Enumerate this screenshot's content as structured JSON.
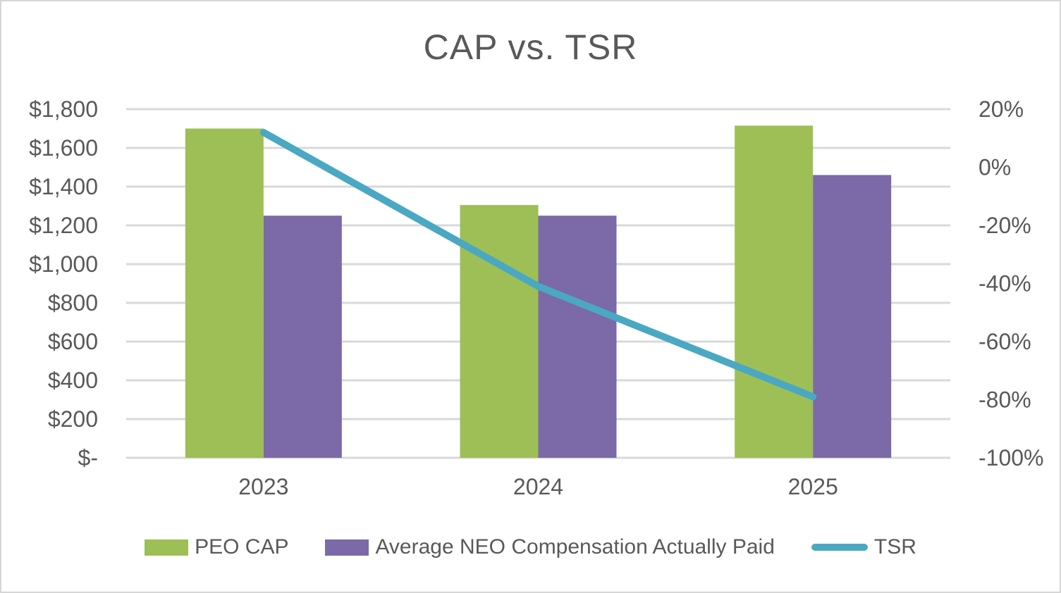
{
  "title": "CAP vs. TSR",
  "colors": {
    "peo_cap_green": "#9dbf55",
    "neo_cap_purple": "#7c69a7",
    "tsr_teal": "#4aa8c2",
    "gridline": "#d9d9d9",
    "axis_text": "#595959",
    "frame_border": "#d6d6d6",
    "background": "#ffffff"
  },
  "chart_data": {
    "type": "bar",
    "subtype": "combo-bar-line-dual-axis",
    "title": "CAP vs. TSR",
    "categories": [
      "2023",
      "2024",
      "2025"
    ],
    "series": [
      {
        "name": "PEO CAP",
        "type": "bar",
        "axis": "left",
        "color": "#9dbf55",
        "values": [
          1700,
          1305,
          1715
        ]
      },
      {
        "name": "Average NEO Compensation Actually Paid",
        "type": "bar",
        "axis": "left",
        "color": "#7c69a7",
        "values": [
          1250,
          1250,
          1460
        ]
      },
      {
        "name": "TSR",
        "type": "line",
        "axis": "right",
        "color": "#4aa8c2",
        "values": [
          12,
          -41,
          -79
        ]
      }
    ],
    "left_axis": {
      "min": 0,
      "max": 1800,
      "step": 200,
      "tick_labels": [
        "$-",
        "$200",
        "$400",
        "$600",
        "$800",
        "$1,000",
        "$1,200",
        "$1,400",
        "$1,600",
        "$1,800"
      ]
    },
    "right_axis": {
      "min": -100,
      "max": 20,
      "step": 20,
      "tick_labels": [
        "-100%",
        "-80%",
        "-60%",
        "-40%",
        "-20%",
        "0%",
        "20%"
      ]
    },
    "grid": "horizontal",
    "legend_position": "bottom"
  }
}
